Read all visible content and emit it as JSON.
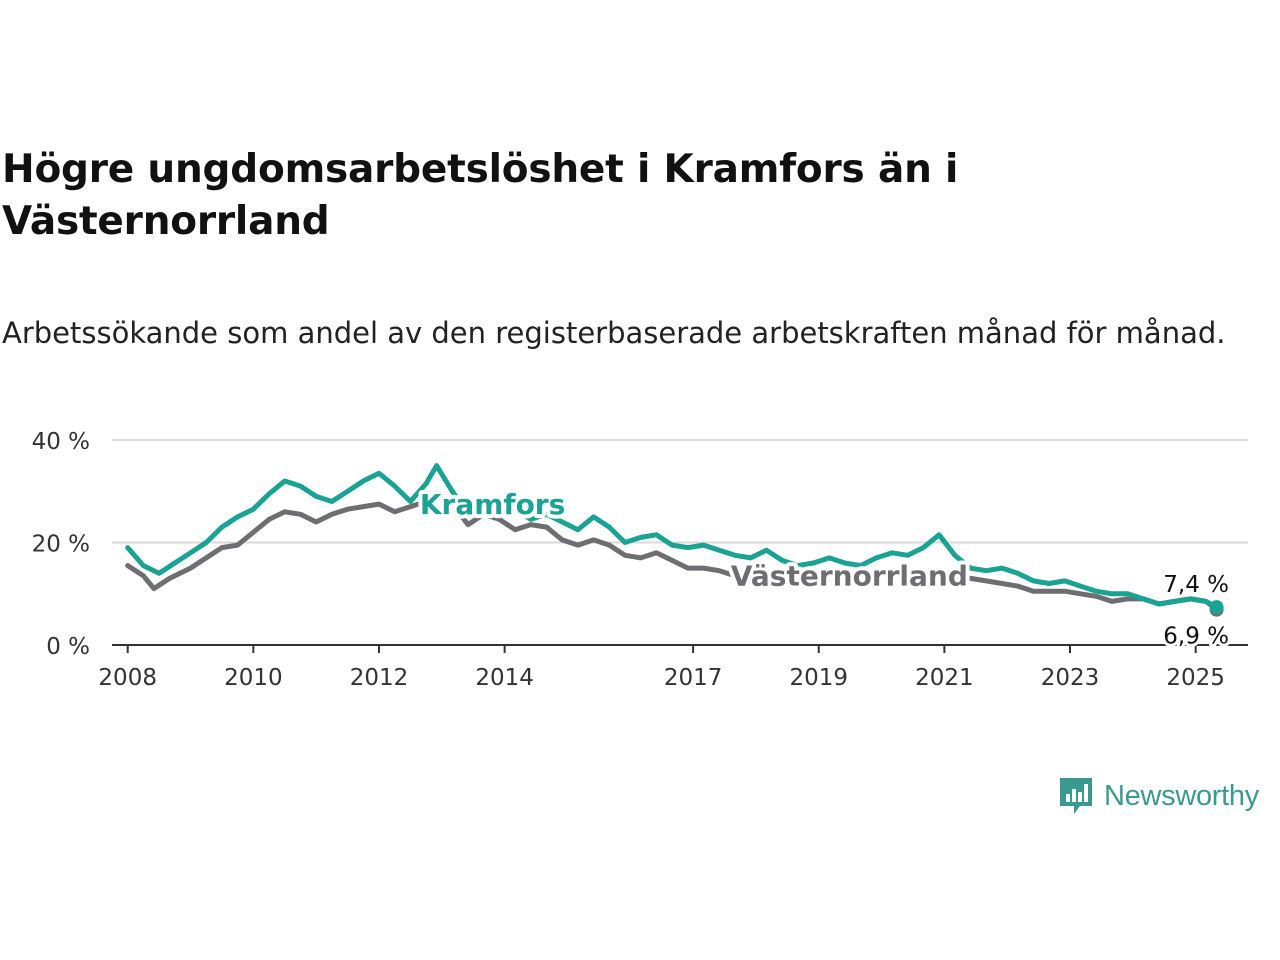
{
  "title": "Högre ungdomsarbetslöshet i Kramfors än i Västernorrland",
  "subtitle": "Arbetssökande som andel av den registerbaserade arbetskraften månad för månad.",
  "brand": {
    "name": "Newsworthy",
    "icon": "newsworthy-chart-bubble-icon"
  },
  "colors": {
    "kramfors": "#1aa393",
    "vasternorrland": "#6e6e72",
    "grid": "#d9d9d9",
    "axis": "#333333",
    "brand": "#3a9a90"
  },
  "chart_data": {
    "type": "line",
    "title": "Högre ungdomsarbetslöshet i Kramfors än i Västernorrland",
    "subtitle": "Arbetssökande som andel av den registerbaserade arbetskraften månad för månad.",
    "xlabel": "",
    "ylabel": "",
    "ylim": [
      0,
      40
    ],
    "xlim": [
      "2007-10",
      "2025-11"
    ],
    "y_ticks": [
      0,
      20,
      40
    ],
    "y_tick_labels": [
      "0 %",
      "20 %",
      "40 %"
    ],
    "x_ticks": [
      "2008-01",
      "2010-01",
      "2012-01",
      "2014-01",
      "2017-01",
      "2019-01",
      "2021-01",
      "2023-01",
      "2025-01"
    ],
    "x_tick_labels": [
      "2008",
      "2010",
      "2012",
      "2014",
      "2017",
      "2019",
      "2021",
      "2023",
      "2025"
    ],
    "grid": true,
    "legend": "direct labels on lines",
    "series": [
      {
        "name": "Kramfors",
        "end_label": "7,4 %",
        "points": [
          [
            "2008-01",
            19
          ],
          [
            "2008-04",
            15.5
          ],
          [
            "2008-07",
            14
          ],
          [
            "2008-10",
            16
          ],
          [
            "2009-01",
            18
          ],
          [
            "2009-04",
            20
          ],
          [
            "2009-07",
            23
          ],
          [
            "2009-10",
            25
          ],
          [
            "2010-01",
            26.5
          ],
          [
            "2010-04",
            29.5
          ],
          [
            "2010-07",
            32
          ],
          [
            "2010-10",
            31
          ],
          [
            "2011-01",
            29
          ],
          [
            "2011-04",
            28
          ],
          [
            "2011-07",
            30
          ],
          [
            "2011-10",
            32
          ],
          [
            "2012-01",
            33.5
          ],
          [
            "2012-04",
            31
          ],
          [
            "2012-07",
            28
          ],
          [
            "2012-10",
            31.5
          ],
          [
            "2012-12",
            35
          ],
          [
            "2013-03",
            30
          ],
          [
            "2013-06",
            25.5
          ],
          [
            "2013-09",
            27
          ],
          [
            "2013-12",
            28
          ],
          [
            "2014-03",
            26.5
          ],
          [
            "2014-06",
            24.5
          ],
          [
            "2014-09",
            25.5
          ],
          [
            "2014-12",
            24
          ],
          [
            "2015-03",
            22.5
          ],
          [
            "2015-06",
            25
          ],
          [
            "2015-09",
            23
          ],
          [
            "2015-12",
            20
          ],
          [
            "2016-03",
            21
          ],
          [
            "2016-06",
            21.5
          ],
          [
            "2016-09",
            19.5
          ],
          [
            "2016-12",
            19
          ],
          [
            "2017-03",
            19.5
          ],
          [
            "2017-06",
            18.5
          ],
          [
            "2017-09",
            17.5
          ],
          [
            "2017-12",
            17
          ],
          [
            "2018-03",
            18.5
          ],
          [
            "2018-06",
            16.5
          ],
          [
            "2018-09",
            15.5
          ],
          [
            "2018-12",
            16
          ],
          [
            "2019-03",
            17
          ],
          [
            "2019-06",
            16
          ],
          [
            "2019-09",
            15.5
          ],
          [
            "2019-12",
            17
          ],
          [
            "2020-03",
            18
          ],
          [
            "2020-06",
            17.5
          ],
          [
            "2020-09",
            19
          ],
          [
            "2020-12",
            21.5
          ],
          [
            "2021-03",
            17.5
          ],
          [
            "2021-06",
            15
          ],
          [
            "2021-09",
            14.5
          ],
          [
            "2021-12",
            15
          ],
          [
            "2022-03",
            14
          ],
          [
            "2022-06",
            12.5
          ],
          [
            "2022-09",
            12
          ],
          [
            "2022-12",
            12.5
          ],
          [
            "2023-03",
            11.5
          ],
          [
            "2023-06",
            10.5
          ],
          [
            "2023-09",
            10
          ],
          [
            "2023-12",
            10
          ],
          [
            "2024-03",
            9
          ],
          [
            "2024-06",
            8
          ],
          [
            "2024-09",
            8.5
          ],
          [
            "2024-12",
            9
          ],
          [
            "2025-03",
            8.5
          ],
          [
            "2025-05",
            7.4
          ]
        ]
      },
      {
        "name": "Västernorrland",
        "end_label": "6,9 %",
        "points": [
          [
            "2008-01",
            15.5
          ],
          [
            "2008-04",
            13.5
          ],
          [
            "2008-06",
            11
          ],
          [
            "2008-09",
            13
          ],
          [
            "2009-01",
            15
          ],
          [
            "2009-04",
            17
          ],
          [
            "2009-07",
            19
          ],
          [
            "2009-10",
            19.5
          ],
          [
            "2010-01",
            22
          ],
          [
            "2010-04",
            24.5
          ],
          [
            "2010-07",
            26
          ],
          [
            "2010-10",
            25.5
          ],
          [
            "2011-01",
            24
          ],
          [
            "2011-04",
            25.5
          ],
          [
            "2011-07",
            26.5
          ],
          [
            "2011-10",
            27
          ],
          [
            "2012-01",
            27.5
          ],
          [
            "2012-04",
            26
          ],
          [
            "2012-07",
            27
          ],
          [
            "2012-10",
            28
          ],
          [
            "2012-12",
            29
          ],
          [
            "2013-03",
            27.5
          ],
          [
            "2013-06",
            23.5
          ],
          [
            "2013-09",
            25.5
          ],
          [
            "2013-12",
            24.5
          ],
          [
            "2014-03",
            22.5
          ],
          [
            "2014-06",
            23.5
          ],
          [
            "2014-09",
            23
          ],
          [
            "2014-12",
            20.5
          ],
          [
            "2015-03",
            19.5
          ],
          [
            "2015-06",
            20.5
          ],
          [
            "2015-09",
            19.5
          ],
          [
            "2015-12",
            17.5
          ],
          [
            "2016-03",
            17
          ],
          [
            "2016-06",
            18
          ],
          [
            "2016-09",
            16.5
          ],
          [
            "2016-12",
            15
          ],
          [
            "2017-03",
            15
          ],
          [
            "2017-06",
            14.5
          ],
          [
            "2017-09",
            13.5
          ],
          [
            "2017-12",
            13.5
          ],
          [
            "2018-03",
            13.5
          ],
          [
            "2018-06",
            14
          ],
          [
            "2018-09",
            13.5
          ],
          [
            "2018-12",
            13.5
          ],
          [
            "2019-03",
            14
          ],
          [
            "2019-06",
            13.5
          ],
          [
            "2019-09",
            13.5
          ],
          [
            "2019-12",
            13.5
          ],
          [
            "2020-03",
            14
          ],
          [
            "2020-06",
            14
          ],
          [
            "2020-09",
            14.5
          ],
          [
            "2020-12",
            14
          ],
          [
            "2021-03",
            13.5
          ],
          [
            "2021-06",
            13
          ],
          [
            "2021-09",
            12.5
          ],
          [
            "2021-12",
            12
          ],
          [
            "2022-03",
            11.5
          ],
          [
            "2022-06",
            10.5
          ],
          [
            "2022-09",
            10.5
          ],
          [
            "2022-12",
            10.5
          ],
          [
            "2023-03",
            10
          ],
          [
            "2023-06",
            9.5
          ],
          [
            "2023-09",
            8.5
          ],
          [
            "2023-12",
            9
          ],
          [
            "2024-03",
            9
          ],
          [
            "2024-06",
            8
          ],
          [
            "2024-09",
            8.5
          ],
          [
            "2024-12",
            9
          ],
          [
            "2025-03",
            8.5
          ],
          [
            "2025-05",
            6.9
          ]
        ]
      }
    ]
  }
}
